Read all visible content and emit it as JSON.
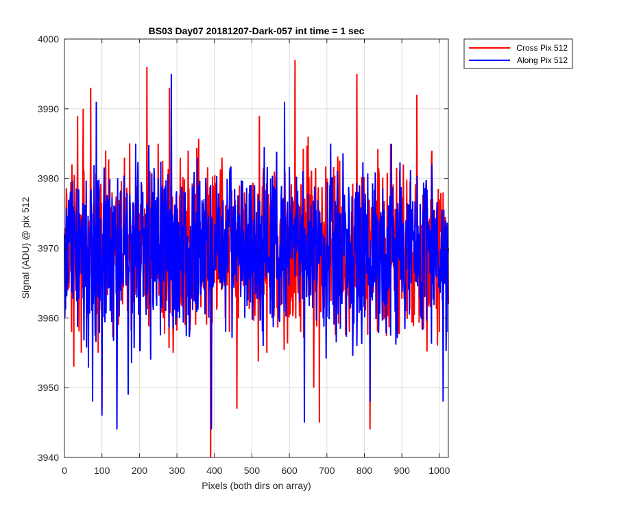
{
  "chart_data": {
    "type": "line",
    "title": "BS03 Day07 20181207-Dark-057 int time = 1 sec",
    "xlabel": "Pixels (both dirs on array)",
    "ylabel": "Signal (ADU) @ pix 512",
    "xlim": [
      0,
      1024
    ],
    "ylim": [
      3940,
      4000
    ],
    "xticks": [
      0,
      100,
      200,
      300,
      400,
      500,
      600,
      700,
      800,
      900,
      1000
    ],
    "yticks": [
      3940,
      3950,
      3960,
      3970,
      3980,
      3990,
      4000
    ],
    "xtick_labels": [
      "0",
      "100",
      "200",
      "300",
      "400",
      "500",
      "600",
      "700",
      "800",
      "900",
      "1000"
    ],
    "ytick_labels": [
      "3940",
      "3950",
      "3960",
      "3970",
      "3980",
      "3990",
      "4000"
    ],
    "grid": true,
    "legend_position": "outside-top-right",
    "series": [
      {
        "name": "Cross Pix 512",
        "color": "#ff0000",
        "mean": 3970,
        "points": [
          [
            0,
            3970
          ],
          [
            10,
            3964
          ],
          [
            20,
            3982
          ],
          [
            25,
            3953
          ],
          [
            30,
            3968
          ],
          [
            35,
            3989
          ],
          [
            45,
            3955
          ],
          [
            50,
            3990
          ],
          [
            60,
            3960
          ],
          [
            70,
            3993
          ],
          [
            80,
            3966
          ],
          [
            90,
            3955
          ],
          [
            100,
            3947
          ],
          [
            110,
            3984
          ],
          [
            120,
            3972
          ],
          [
            140,
            3958
          ],
          [
            160,
            3983
          ],
          [
            180,
            3961
          ],
          [
            200,
            3975
          ],
          [
            215,
            3966
          ],
          [
            220,
            3996
          ],
          [
            230,
            3962
          ],
          [
            250,
            3985
          ],
          [
            270,
            3969
          ],
          [
            280,
            3993
          ],
          [
            290,
            3955
          ],
          [
            310,
            3976
          ],
          [
            330,
            3984
          ],
          [
            350,
            3959
          ],
          [
            370,
            3972
          ],
          [
            390,
            3940
          ],
          [
            400,
            3965
          ],
          [
            420,
            3983
          ],
          [
            440,
            3958
          ],
          [
            460,
            3947
          ],
          [
            480,
            3978
          ],
          [
            500,
            3969
          ],
          [
            520,
            3989
          ],
          [
            540,
            3955
          ],
          [
            560,
            3981
          ],
          [
            580,
            3962
          ],
          [
            600,
            3970
          ],
          [
            615,
            3997
          ],
          [
            630,
            3958
          ],
          [
            650,
            3986
          ],
          [
            665,
            3950
          ],
          [
            680,
            3945
          ],
          [
            700,
            3980
          ],
          [
            720,
            3962
          ],
          [
            740,
            3976
          ],
          [
            760,
            3958
          ],
          [
            780,
            3995
          ],
          [
            800,
            3966
          ],
          [
            815,
            3944
          ],
          [
            830,
            3980
          ],
          [
            850,
            3961
          ],
          [
            870,
            3985
          ],
          [
            890,
            3958
          ],
          [
            910,
            3972
          ],
          [
            930,
            3960
          ],
          [
            940,
            3992
          ],
          [
            960,
            3966
          ],
          [
            980,
            3984
          ],
          [
            1000,
            3958
          ],
          [
            1010,
            3978
          ],
          [
            1024,
            3962
          ]
        ]
      },
      {
        "name": "Along Pix 512",
        "color": "#0000ff",
        "mean": 3970,
        "points": [
          [
            0,
            3972
          ],
          [
            10,
            3965
          ],
          [
            20,
            3978
          ],
          [
            30,
            3966
          ],
          [
            40,
            3975
          ],
          [
            60,
            3967
          ],
          [
            75,
            3948
          ],
          [
            85,
            3991
          ],
          [
            100,
            3946
          ],
          [
            120,
            3975
          ],
          [
            140,
            3944
          ],
          [
            160,
            3969
          ],
          [
            170,
            3949
          ],
          [
            190,
            3985
          ],
          [
            210,
            3963
          ],
          [
            230,
            3954
          ],
          [
            250,
            3980
          ],
          [
            270,
            3961
          ],
          [
            285,
            3995
          ],
          [
            300,
            3960
          ],
          [
            320,
            3976
          ],
          [
            350,
            3962
          ],
          [
            380,
            3971
          ],
          [
            392,
            3944
          ],
          [
            410,
            3969
          ],
          [
            430,
            3958
          ],
          [
            450,
            3976
          ],
          [
            470,
            3963
          ],
          [
            500,
            3968
          ],
          [
            530,
            3956
          ],
          [
            550,
            3980
          ],
          [
            580,
            3962
          ],
          [
            587,
            3991
          ],
          [
            610,
            3970
          ],
          [
            640,
            3945
          ],
          [
            660,
            3973
          ],
          [
            690,
            3960
          ],
          [
            710,
            3985
          ],
          [
            740,
            3962
          ],
          [
            760,
            3975
          ],
          [
            780,
            3956
          ],
          [
            800,
            3970
          ],
          [
            815,
            3948
          ],
          [
            840,
            3974
          ],
          [
            860,
            3962
          ],
          [
            890,
            3975
          ],
          [
            910,
            3961
          ],
          [
            940,
            3971
          ],
          [
            960,
            3963
          ],
          [
            980,
            3982
          ],
          [
            1000,
            3966
          ],
          [
            1010,
            3948
          ],
          [
            1024,
            3970
          ]
        ]
      }
    ],
    "noise_spread": 6
  }
}
